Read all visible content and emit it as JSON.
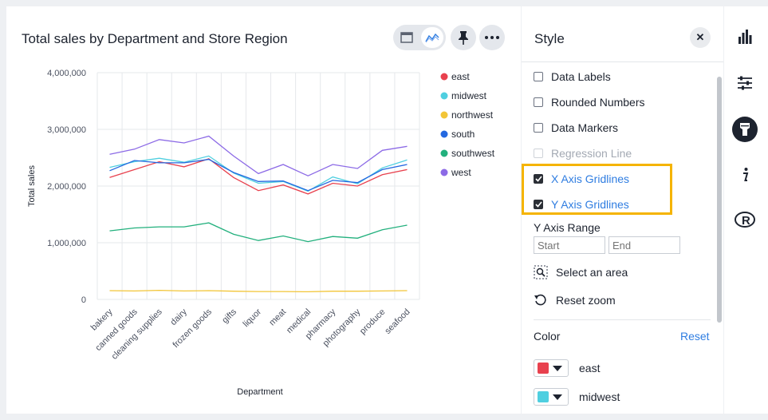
{
  "chart": {
    "title": "Total sales by Department and Store Region",
    "view_toggle": {
      "left": "table-view-icon",
      "right": "chart-view-icon"
    },
    "pin_icon": "pin-icon",
    "more_icon": "more-icon"
  },
  "chart_data": {
    "type": "line",
    "xlabel": "Department",
    "ylabel": "Total sales",
    "ylim": [
      0,
      4000000
    ],
    "y_ticks": [
      "0",
      "1,000,000",
      "2,000,000",
      "3,000,000",
      "4,000,000"
    ],
    "grid": true,
    "legend_position": "right",
    "categories": [
      "bakery",
      "canned goods",
      "cleaning supplies",
      "dairy",
      "frozen goods",
      "gifts",
      "liquor",
      "meat",
      "medical",
      "pharmacy",
      "photography",
      "produce",
      "seafood"
    ],
    "series": [
      {
        "name": "east",
        "color": "#e8414e",
        "values": [
          2150000,
          2290000,
          2430000,
          2340000,
          2480000,
          2150000,
          1920000,
          2020000,
          1860000,
          2050000,
          2000000,
          2200000,
          2290000
        ]
      },
      {
        "name": "midwest",
        "color": "#4fcfe0",
        "values": [
          2330000,
          2430000,
          2490000,
          2420000,
          2530000,
          2230000,
          2050000,
          2080000,
          1910000,
          2160000,
          2040000,
          2320000,
          2460000
        ]
      },
      {
        "name": "northwest",
        "color": "#f2c537",
        "values": [
          155000,
          150000,
          160000,
          150000,
          155000,
          145000,
          140000,
          140000,
          135000,
          145000,
          145000,
          150000,
          155000
        ]
      },
      {
        "name": "south",
        "color": "#2468e0",
        "values": [
          2270000,
          2450000,
          2410000,
          2410000,
          2470000,
          2240000,
          2080000,
          2090000,
          1920000,
          2100000,
          2060000,
          2290000,
          2380000
        ]
      },
      {
        "name": "southwest",
        "color": "#22b07d",
        "values": [
          1210000,
          1260000,
          1280000,
          1280000,
          1350000,
          1150000,
          1040000,
          1120000,
          1020000,
          1110000,
          1080000,
          1230000,
          1310000
        ]
      },
      {
        "name": "west",
        "color": "#8c6ae6",
        "values": [
          2560000,
          2650000,
          2820000,
          2760000,
          2880000,
          2530000,
          2220000,
          2380000,
          2180000,
          2380000,
          2310000,
          2630000,
          2700000
        ]
      }
    ]
  },
  "style_panel": {
    "title": "Style",
    "close_icon": "close-icon",
    "options": [
      {
        "label": "Data Labels",
        "checked": false,
        "disabled": false
      },
      {
        "label": "Rounded Numbers",
        "checked": false,
        "disabled": false
      },
      {
        "label": "Data Markers",
        "checked": false,
        "disabled": false
      },
      {
        "label": "Regression Line",
        "checked": false,
        "disabled": true
      },
      {
        "label": "X Axis Gridlines",
        "checked": true,
        "disabled": false
      },
      {
        "label": "Y Axis Gridlines",
        "checked": true,
        "disabled": false
      }
    ],
    "y_axis_range": {
      "label": "Y Axis Range",
      "start_placeholder": "Start",
      "end_placeholder": "End"
    },
    "select_area": "Select an area",
    "reset_zoom": "Reset zoom",
    "color": {
      "label": "Color",
      "reset": "Reset",
      "rows": [
        {
          "name": "east",
          "color": "#e8414e"
        },
        {
          "name": "midwest",
          "color": "#4fcfe0"
        }
      ]
    }
  },
  "right_rail": {
    "icons": [
      "bar-chart-icon",
      "settings-sliders-icon",
      "style-brush-icon",
      "info-icon",
      "r-logo-icon"
    ]
  }
}
